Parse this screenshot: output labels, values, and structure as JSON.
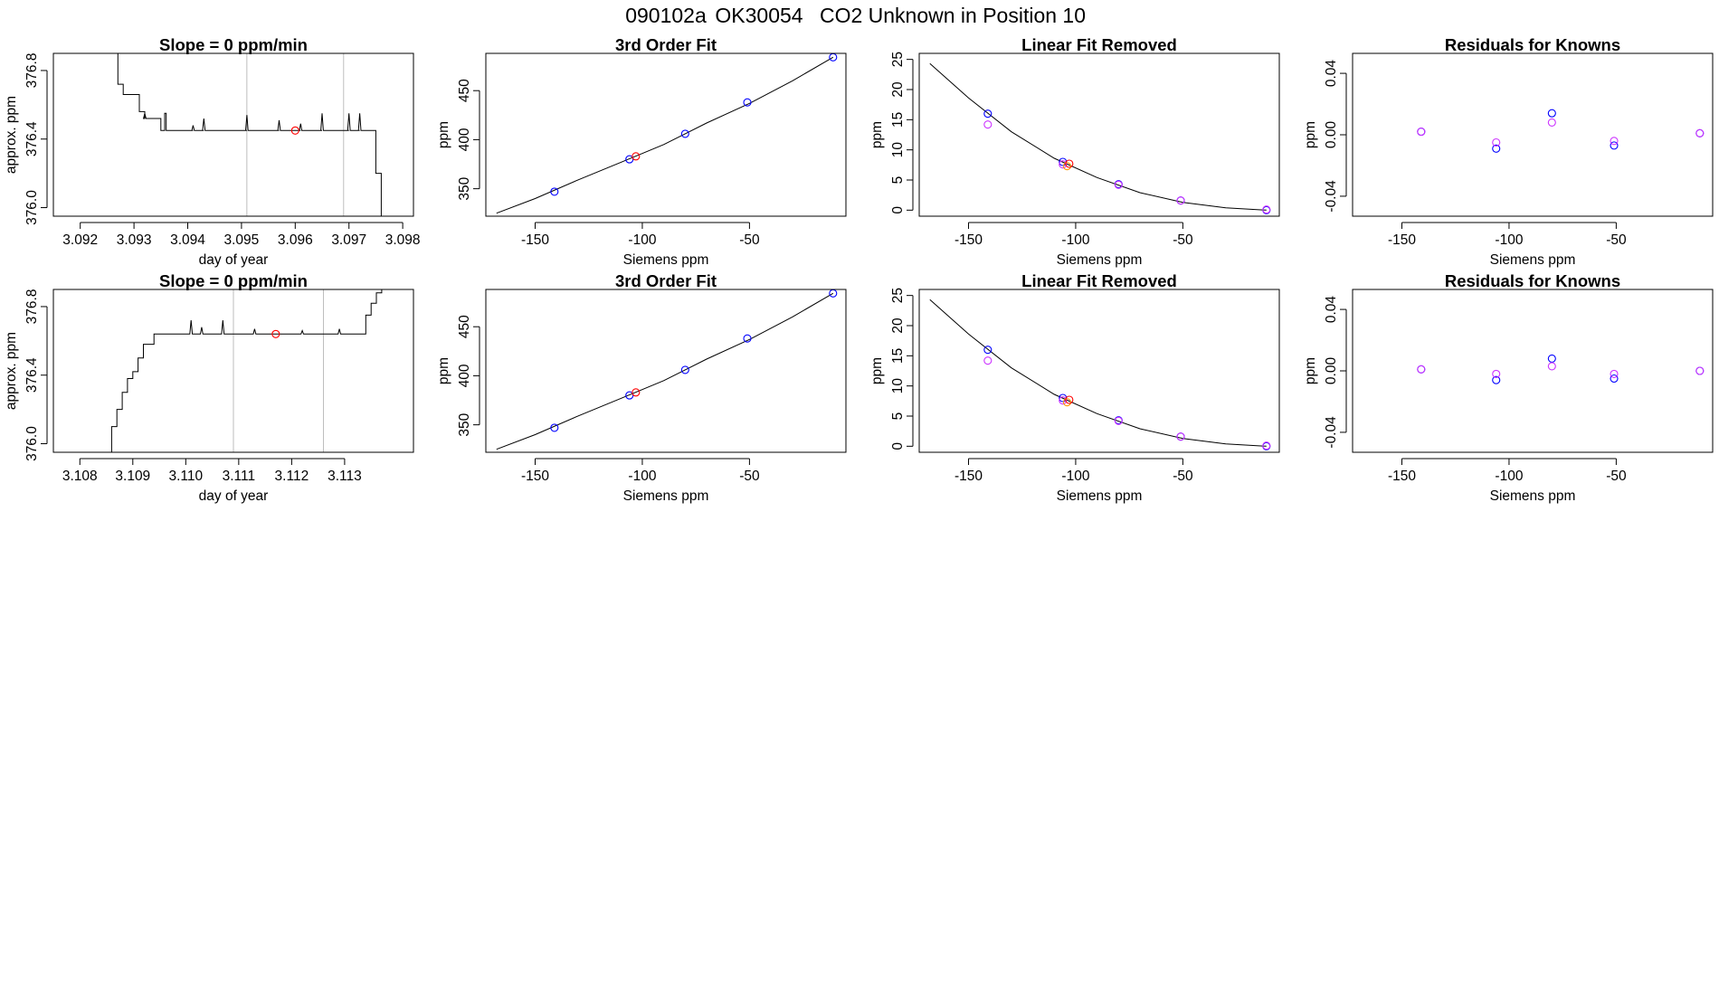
{
  "figure": {
    "date_code": "090102a",
    "tank_id": "OK30054",
    "description": "CO2 Unknown in Position  10"
  },
  "colors": {
    "axis": "#000000",
    "known": "#0000ff",
    "unknown": "#ff0000",
    "residual_alt": "#cc33ff",
    "orange_point": "#ff9900",
    "marker_line": "#bebebe"
  },
  "chart_data": [
    {
      "type": "line",
      "panel": "row1-slope",
      "title": "Slope =  0  ppm/min",
      "xlabel": "day of year",
      "ylabel": "approx. ppm",
      "xlim": [
        3.0915,
        3.0982
      ],
      "ylim": [
        375.95,
        376.9
      ],
      "xticks": [
        3.092,
        3.093,
        3.094,
        3.095,
        3.096,
        3.097,
        3.098
      ],
      "xtick_labels": [
        "3.092",
        "3.093",
        "3.094",
        "3.095",
        "3.096",
        "3.097",
        "3.098"
      ],
      "yticks": [
        376.0,
        376.4,
        376.8
      ],
      "ytick_labels": [
        "376.0",
        "376.4",
        "376.8"
      ],
      "vlines": [
        3.0951,
        3.0969
      ],
      "series": [
        {
          "name": "trace",
          "x": [
            3.0925,
            3.0927,
            3.0928,
            3.0929,
            3.0931,
            3.0932,
            3.0935,
            3.09357,
            3.0936,
            3.0937,
            3.0938,
            3.0939,
            3.094,
            3.0941,
            3.0942,
            3.0943,
            3.0944,
            3.0948,
            3.0949,
            3.0951,
            3.0952,
            3.0956,
            3.0957,
            3.0958,
            3.096,
            3.0961,
            3.0962,
            3.0964,
            3.0965,
            3.0966,
            3.0969,
            3.097,
            3.0971,
            3.0972,
            3.0973,
            3.0974,
            3.0975,
            3.0976
          ],
          "y": [
            376.9,
            376.72,
            376.66,
            376.66,
            376.56,
            376.52,
            376.45,
            376.55,
            376.45,
            376.45,
            376.45,
            376.45,
            376.45,
            376.45,
            376.45,
            376.45,
            376.45,
            376.45,
            376.45,
            376.45,
            376.45,
            376.45,
            376.45,
            376.45,
            376.45,
            376.45,
            376.45,
            376.45,
            376.45,
            376.45,
            376.45,
            376.45,
            376.45,
            376.45,
            376.45,
            376.45,
            376.2,
            375.95
          ],
          "spikes": [
            [
              3.0932,
              376.55
            ],
            [
              3.0941,
              376.48
            ],
            [
              3.0943,
              376.52
            ],
            [
              3.0951,
              376.54
            ],
            [
              3.0957,
              376.51
            ],
            [
              3.0961,
              376.49
            ],
            [
              3.0965,
              376.55
            ],
            [
              3.097,
              376.55
            ],
            [
              3.0972,
              376.55
            ]
          ]
        },
        {
          "name": "sample",
          "marker": "circle",
          "color": "#ff0000",
          "x": [
            3.096
          ],
          "y": [
            376.45
          ]
        }
      ]
    },
    {
      "type": "scatter",
      "panel": "row1-fit",
      "title": "3rd Order Fit",
      "xlabel": "Siemens ppm",
      "ylabel": "ppm",
      "xlim": [
        -173,
        -5
      ],
      "ylim": [
        322,
        488
      ],
      "xticks": [
        -150,
        -100,
        -50
      ],
      "xtick_labels": [
        "-150",
        "-100",
        "-50"
      ],
      "yticks": [
        350,
        400,
        450
      ],
      "ytick_labels": [
        "350",
        "400",
        "450"
      ],
      "series": [
        {
          "name": "fit curve",
          "x": [
            -168,
            -150,
            -130,
            -110,
            -90,
            -70,
            -50,
            -30,
            -11
          ],
          "y": [
            325,
            340,
            359,
            377,
            395,
            417,
            437,
            460,
            484
          ]
        },
        {
          "name": "knowns",
          "marker": "circle",
          "color": "#0000ff",
          "x": [
            -141,
            -106,
            -80,
            -51,
            -11
          ],
          "y": [
            347,
            380,
            406,
            438,
            484
          ]
        },
        {
          "name": "unknown",
          "marker": "circle",
          "color": "#ff0000",
          "x": [
            -103
          ],
          "y": [
            383
          ]
        }
      ]
    },
    {
      "type": "scatter",
      "panel": "row1-linear",
      "title": "Linear Fit Removed",
      "xlabel": "Siemens ppm",
      "ylabel": "ppm",
      "xlim": [
        -173,
        -5
      ],
      "ylim": [
        -1,
        26
      ],
      "xticks": [
        -150,
        -100,
        -50
      ],
      "xtick_labels": [
        "-150",
        "-100",
        "-50"
      ],
      "yticks": [
        0,
        5,
        10,
        15,
        20,
        25
      ],
      "ytick_labels": [
        "0",
        "5",
        "10",
        "15",
        "20",
        "25"
      ],
      "series": [
        {
          "name": "fit curve",
          "x": [
            -168,
            -150,
            -130,
            -110,
            -90,
            -70,
            -50,
            -30,
            -11
          ],
          "y": [
            24.3,
            18.6,
            13.0,
            8.6,
            5.4,
            2.9,
            1.3,
            0.4,
            0.0
          ]
        },
        {
          "name": "knowns",
          "marker": "circle",
          "color": "#0000ff",
          "x": [
            -141,
            -106,
            -80,
            -51,
            -11
          ],
          "y": [
            16.0,
            8.0,
            4.3,
            1.6,
            0.0
          ]
        },
        {
          "name": "knowns alt",
          "marker": "circle",
          "color": "#cc33ff",
          "x": [
            -141,
            -106,
            -80,
            -51,
            -11
          ],
          "y": [
            14.2,
            7.6,
            4.2,
            1.6,
            0.1
          ]
        },
        {
          "name": "unknown",
          "marker": "circle",
          "color": "#ff9900",
          "x": [
            -104
          ],
          "y": [
            7.3
          ]
        },
        {
          "name": "unknown fit",
          "marker": "circle",
          "color": "#ff0000",
          "x": [
            -103
          ],
          "y": [
            7.7
          ]
        }
      ]
    },
    {
      "type": "scatter",
      "panel": "row1-residual",
      "title": "Residuals for Knowns",
      "xlabel": "Siemens ppm",
      "ylabel": "ppm",
      "xlim": [
        -173,
        -5
      ],
      "ylim": [
        -0.053,
        0.053
      ],
      "xticks": [
        -150,
        -100,
        -50
      ],
      "xtick_labels": [
        "-150",
        "-100",
        "-50"
      ],
      "yticks": [
        -0.04,
        0.0,
        0.04
      ],
      "ytick_labels": [
        "-0.04",
        "0.00",
        "0.04"
      ],
      "series": [
        {
          "name": "residuals",
          "marker": "circle",
          "color": "#0000ff",
          "x": [
            -141,
            -106,
            -80,
            -51,
            -11
          ],
          "y": [
            0.002,
            -0.009,
            0.014,
            -0.007,
            0.001
          ]
        },
        {
          "name": "residuals alt",
          "marker": "circle",
          "color": "#cc33ff",
          "x": [
            -141,
            -106,
            -80,
            -51,
            -11
          ],
          "y": [
            0.002,
            -0.005,
            0.008,
            -0.004,
            0.001
          ]
        }
      ]
    },
    {
      "type": "line",
      "panel": "row2-slope",
      "title": "Slope =  0  ppm/min",
      "xlabel": "day of year",
      "ylabel": "approx. ppm",
      "xlim": [
        3.1075,
        3.1143
      ],
      "ylim": [
        375.95,
        376.9
      ],
      "xticks": [
        3.108,
        3.109,
        3.11,
        3.111,
        3.112,
        3.113
      ],
      "xtick_labels": [
        "3.108",
        "3.109",
        "3.110",
        "3.111",
        "3.112",
        "3.113"
      ],
      "yticks": [
        376.0,
        376.4,
        376.8
      ],
      "ytick_labels": [
        "376.0",
        "376.4",
        "376.8"
      ],
      "vlines": [
        3.1109,
        3.1126
      ],
      "series": [
        {
          "name": "trace",
          "x": [
            3.1085,
            3.1086,
            3.1087,
            3.1088,
            3.1089,
            3.109,
            3.1091,
            3.1092,
            3.1094,
            3.11,
            3.1106,
            3.1112,
            3.1118,
            3.1124,
            3.113,
            3.1133,
            3.1134,
            3.1135,
            3.1136,
            3.1137
          ],
          "y": [
            375.95,
            376.1,
            376.2,
            376.3,
            376.38,
            376.42,
            376.5,
            376.58,
            376.64,
            376.64,
            376.64,
            376.64,
            376.64,
            376.64,
            376.64,
            376.64,
            376.75,
            376.82,
            376.88,
            376.9
          ],
          "spikes": [
            [
              3.1095,
              376.64
            ],
            [
              3.1101,
              376.72
            ],
            [
              3.1103,
              376.68
            ],
            [
              3.1107,
              376.72
            ],
            [
              3.1113,
              376.67
            ],
            [
              3.1122,
              376.66
            ],
            [
              3.1129,
              376.67
            ]
          ]
        },
        {
          "name": "sample",
          "marker": "circle",
          "color": "#ff0000",
          "x": [
            3.1117
          ],
          "y": [
            376.64
          ]
        }
      ]
    },
    {
      "type": "scatter",
      "panel": "row2-fit",
      "title": "3rd Order Fit",
      "xlabel": "Siemens ppm",
      "ylabel": "ppm",
      "xlim": [
        -173,
        -5
      ],
      "ylim": [
        322,
        488
      ],
      "xticks": [
        -150,
        -100,
        -50
      ],
      "xtick_labels": [
        "-150",
        "-100",
        "-50"
      ],
      "yticks": [
        350,
        400,
        450
      ],
      "ytick_labels": [
        "350",
        "400",
        "450"
      ],
      "series": [
        {
          "name": "fit curve",
          "x": [
            -168,
            -150,
            -130,
            -110,
            -90,
            -70,
            -50,
            -30,
            -11
          ],
          "y": [
            325,
            340,
            359,
            377,
            395,
            417,
            437,
            460,
            484
          ]
        },
        {
          "name": "knowns",
          "marker": "circle",
          "color": "#0000ff",
          "x": [
            -141,
            -106,
            -80,
            -51,
            -11
          ],
          "y": [
            347,
            380,
            406,
            438,
            484
          ]
        },
        {
          "name": "unknown",
          "marker": "circle",
          "color": "#ff0000",
          "x": [
            -103
          ],
          "y": [
            383
          ]
        }
      ]
    },
    {
      "type": "scatter",
      "panel": "row2-linear",
      "title": "Linear Fit Removed",
      "xlabel": "Siemens ppm",
      "ylabel": "ppm",
      "xlim": [
        -173,
        -5
      ],
      "ylim": [
        -1,
        26
      ],
      "xticks": [
        -150,
        -100,
        -50
      ],
      "xtick_labels": [
        "-150",
        "-100",
        "-50"
      ],
      "yticks": [
        0,
        5,
        10,
        15,
        20,
        25
      ],
      "ytick_labels": [
        "0",
        "5",
        "10",
        "15",
        "20",
        "25"
      ],
      "series": [
        {
          "name": "fit curve",
          "x": [
            -168,
            -150,
            -130,
            -110,
            -90,
            -70,
            -50,
            -30,
            -11
          ],
          "y": [
            24.3,
            18.6,
            13.0,
            8.6,
            5.4,
            2.9,
            1.3,
            0.4,
            0.0
          ]
        },
        {
          "name": "knowns",
          "marker": "circle",
          "color": "#0000ff",
          "x": [
            -141,
            -106,
            -80,
            -51,
            -11
          ],
          "y": [
            16.0,
            8.0,
            4.3,
            1.6,
            0.0
          ]
        },
        {
          "name": "knowns alt",
          "marker": "circle",
          "color": "#cc33ff",
          "x": [
            -141,
            -106,
            -80,
            -51,
            -11
          ],
          "y": [
            14.2,
            7.6,
            4.2,
            1.6,
            0.1
          ]
        },
        {
          "name": "unknown",
          "marker": "circle",
          "color": "#ff9900",
          "x": [
            -104
          ],
          "y": [
            7.3
          ]
        },
        {
          "name": "unknown fit",
          "marker": "circle",
          "color": "#ff0000",
          "x": [
            -103
          ],
          "y": [
            7.7
          ]
        }
      ]
    },
    {
      "type": "scatter",
      "panel": "row2-residual",
      "title": "Residuals for Knowns",
      "xlabel": "Siemens ppm",
      "ylabel": "ppm",
      "xlim": [
        -173,
        -5
      ],
      "ylim": [
        -0.053,
        0.053
      ],
      "xticks": [
        -150,
        -100,
        -50
      ],
      "xtick_labels": [
        "-150",
        "-100",
        "-50"
      ],
      "yticks": [
        -0.04,
        0.0,
        0.04
      ],
      "ytick_labels": [
        "-0.04",
        "0.00",
        "0.04"
      ],
      "series": [
        {
          "name": "residuals",
          "marker": "circle",
          "color": "#0000ff",
          "x": [
            -141,
            -106,
            -80,
            -51,
            -11
          ],
          "y": [
            0.001,
            -0.006,
            0.008,
            -0.005,
            0.0
          ]
        },
        {
          "name": "residuals alt",
          "marker": "circle",
          "color": "#cc33ff",
          "x": [
            -141,
            -106,
            -80,
            -51,
            -11
          ],
          "y": [
            0.001,
            -0.002,
            0.003,
            -0.002,
            0.0
          ]
        }
      ]
    }
  ]
}
